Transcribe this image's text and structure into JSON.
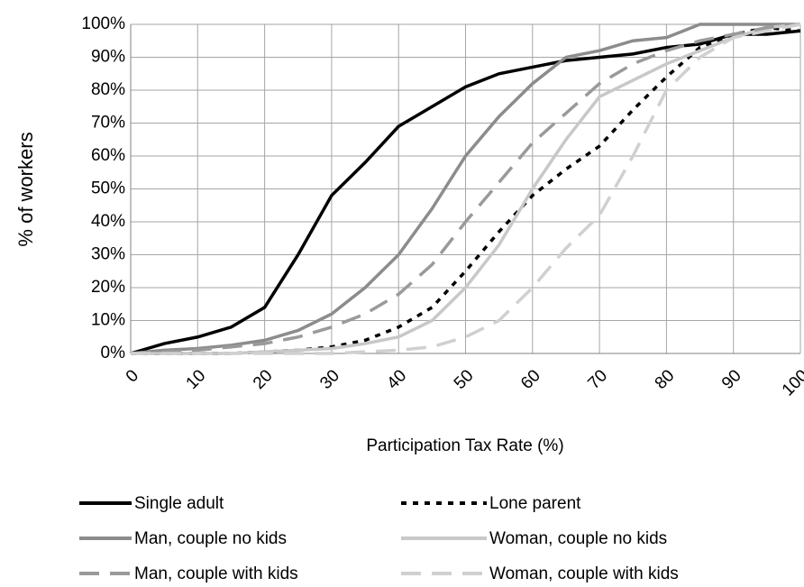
{
  "chart_data": {
    "type": "line",
    "x_label": "Participation Tax Rate (%)",
    "y_label": "% of workers",
    "x": [
      0,
      5,
      10,
      15,
      20,
      25,
      30,
      35,
      40,
      45,
      50,
      55,
      60,
      65,
      70,
      75,
      80,
      85,
      90,
      95,
      100
    ],
    "xlim": [
      0,
      100
    ],
    "xticks": [
      0,
      10,
      20,
      30,
      40,
      50,
      60,
      70,
      80,
      90,
      100
    ],
    "ylim": [
      0,
      100
    ],
    "yticks": [
      {
        "value": 0,
        "label": "0%"
      },
      {
        "value": 10,
        "label": "10%"
      },
      {
        "value": 20,
        "label": "20%"
      },
      {
        "value": 30,
        "label": "30%"
      },
      {
        "value": 40,
        "label": "40%"
      },
      {
        "value": 50,
        "label": "50%"
      },
      {
        "value": 60,
        "label": "60%"
      },
      {
        "value": 70,
        "label": "70%"
      },
      {
        "value": 80,
        "label": "80%"
      },
      {
        "value": 90,
        "label": "90%"
      },
      {
        "value": 100,
        "label": "100%"
      }
    ],
    "grid": true,
    "legend": "bottom",
    "series": [
      {
        "name": "Single adult",
        "color": "#000000",
        "dash": "solid",
        "values": [
          0,
          3,
          5,
          8,
          14,
          30,
          48,
          58,
          69,
          75,
          81,
          85,
          87,
          89,
          90,
          91,
          93,
          94,
          97,
          97,
          98
        ]
      },
      {
        "name": "Lone parent",
        "color": "#000000",
        "dash": "dotted",
        "values": [
          0,
          0,
          0,
          0,
          0.5,
          1,
          2,
          4,
          8,
          14,
          25,
          37,
          48,
          56,
          63,
          74,
          84,
          93,
          97,
          99,
          98
        ]
      },
      {
        "name": "Man, couple no kids",
        "color": "#8c8c8c",
        "dash": "solid",
        "values": [
          0,
          1,
          1.5,
          2.5,
          4,
          7,
          12,
          20,
          30,
          44,
          60,
          72,
          82,
          90,
          92,
          95,
          96,
          100,
          100,
          100,
          100
        ]
      },
      {
        "name": "Woman, couple no kids",
        "color": "#c8c8c8",
        "dash": "solid",
        "values": [
          0,
          0,
          0,
          0,
          0.5,
          1,
          1.5,
          3,
          5,
          10,
          20,
          33,
          50,
          65,
          78,
          83,
          88,
          92,
          96,
          99,
          100
        ]
      },
      {
        "name": "Man, couple with kids",
        "color": "#9a9a9a",
        "dash": "dashed",
        "values": [
          0,
          0.5,
          1,
          2,
          3,
          5,
          8,
          12,
          18,
          27,
          40,
          52,
          64,
          73,
          82,
          88,
          92,
          95,
          97,
          99,
          100
        ]
      },
      {
        "name": "Woman, couple with kids",
        "color": "#d0d0d0",
        "dash": "dashed",
        "values": [
          0,
          0,
          0,
          0,
          0,
          0,
          0,
          0.5,
          1,
          2,
          5,
          10,
          20,
          32,
          42,
          60,
          80,
          90,
          96,
          98,
          100
        ]
      }
    ]
  }
}
